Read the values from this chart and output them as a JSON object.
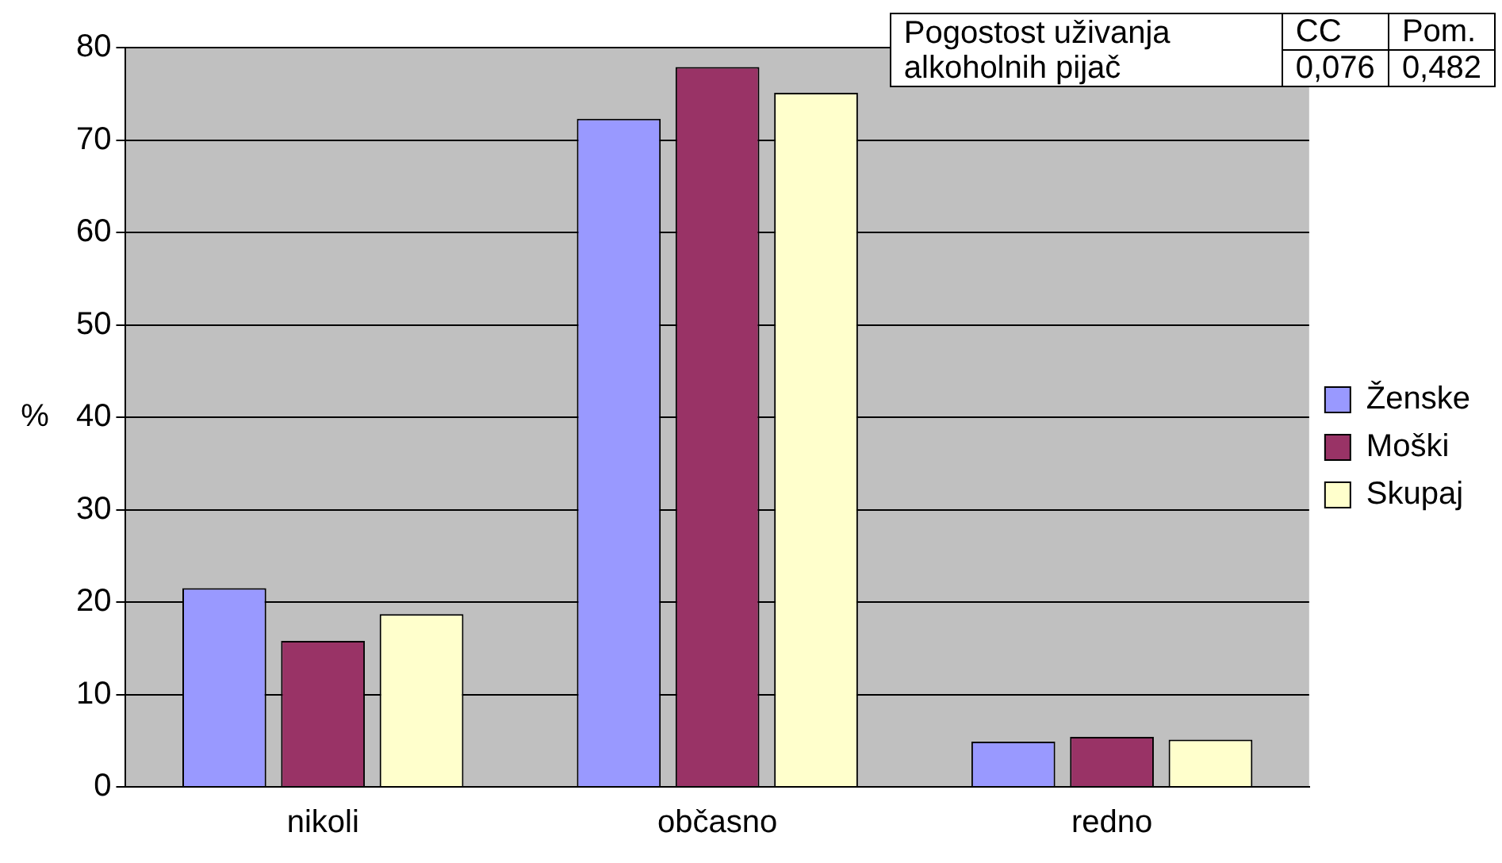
{
  "chart_data": {
    "type": "bar",
    "ylabel": "%",
    "categories": [
      "nikoli",
      "občasno",
      "redno"
    ],
    "series": [
      {
        "name": "Ženske",
        "color": "#9999ff",
        "values": [
          21.5,
          72.3,
          4.9
        ]
      },
      {
        "name": "Moški",
        "color": "#993366",
        "values": [
          15.8,
          77.9,
          5.4
        ]
      },
      {
        "name": "Skupaj",
        "color": "#ffffcc",
        "values": [
          18.7,
          75.1,
          5.1
        ]
      }
    ],
    "ylim": [
      0,
      80
    ],
    "yticks": [
      0,
      10,
      20,
      30,
      40,
      50,
      60,
      70,
      80
    ],
    "grid": "y",
    "legend": "right",
    "annotations": [
      "Pogostost uživanja alkoholnih pijač",
      "CC",
      "Pom.",
      "0,076",
      "0,482"
    ]
  }
}
